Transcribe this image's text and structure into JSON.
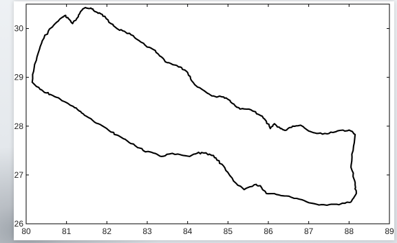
{
  "chart_data": {
    "type": "map",
    "xlim": [
      80,
      89
    ],
    "ylim": [
      26,
      30.5
    ],
    "x_ticks": [
      80,
      81,
      82,
      83,
      84,
      85,
      86,
      87,
      88,
      89
    ],
    "y_ticks": [
      26,
      27,
      28,
      29,
      30
    ],
    "x_tick_labels": [
      "80",
      "81",
      "82",
      "83",
      "84",
      "85",
      "86",
      "87",
      "88",
      "89"
    ],
    "y_tick_labels": [
      "26",
      "27",
      "28",
      "29",
      "30"
    ],
    "outline_color": "#000000",
    "grid": false,
    "boundary": [
      [
        80.15,
        28.9
      ],
      [
        80.2,
        29.2
      ],
      [
        80.3,
        29.5
      ],
      [
        80.4,
        29.75
      ],
      [
        80.55,
        29.95
      ],
      [
        80.72,
        30.1
      ],
      [
        80.88,
        30.22
      ],
      [
        80.98,
        30.27
      ],
      [
        81.05,
        30.2
      ],
      [
        81.15,
        30.1
      ],
      [
        81.25,
        30.2
      ],
      [
        81.35,
        30.35
      ],
      [
        81.47,
        30.43
      ],
      [
        81.6,
        30.42
      ],
      [
        81.7,
        30.35
      ],
      [
        81.82,
        30.32
      ],
      [
        81.95,
        30.25
      ],
      [
        82.1,
        30.1
      ],
      [
        82.25,
        30.0
      ],
      [
        82.4,
        29.95
      ],
      [
        82.6,
        29.87
      ],
      [
        82.8,
        29.75
      ],
      [
        83.0,
        29.62
      ],
      [
        83.2,
        29.55
      ],
      [
        83.35,
        29.42
      ],
      [
        83.5,
        29.3
      ],
      [
        83.7,
        29.25
      ],
      [
        83.85,
        29.2
      ],
      [
        84.0,
        29.1
      ],
      [
        84.1,
        28.93
      ],
      [
        84.25,
        28.8
      ],
      [
        84.45,
        28.7
      ],
      [
        84.6,
        28.62
      ],
      [
        84.85,
        28.6
      ],
      [
        85.0,
        28.55
      ],
      [
        85.15,
        28.45
      ],
      [
        85.3,
        28.35
      ],
      [
        85.5,
        28.35
      ],
      [
        85.65,
        28.3
      ],
      [
        85.8,
        28.22
      ],
      [
        85.95,
        28.1
      ],
      [
        86.05,
        27.95
      ],
      [
        86.15,
        28.05
      ],
      [
        86.3,
        27.95
      ],
      [
        86.45,
        27.92
      ],
      [
        86.6,
        28.0
      ],
      [
        86.8,
        28.02
      ],
      [
        87.0,
        27.9
      ],
      [
        87.2,
        27.85
      ],
      [
        87.4,
        27.85
      ],
      [
        87.6,
        27.87
      ],
      [
        87.85,
        27.92
      ],
      [
        88.05,
        27.9
      ],
      [
        88.15,
        27.83
      ],
      [
        88.1,
        27.5
      ],
      [
        88.05,
        27.2
      ],
      [
        88.1,
        27.0
      ],
      [
        88.15,
        26.8
      ],
      [
        88.18,
        26.62
      ],
      [
        88.05,
        26.45
      ],
      [
        87.9,
        26.42
      ],
      [
        87.7,
        26.4
      ],
      [
        87.45,
        26.38
      ],
      [
        87.2,
        26.4
      ],
      [
        86.95,
        26.45
      ],
      [
        86.7,
        26.52
      ],
      [
        86.45,
        26.57
      ],
      [
        86.2,
        26.6
      ],
      [
        85.95,
        26.62
      ],
      [
        85.8,
        26.78
      ],
      [
        85.65,
        26.8
      ],
      [
        85.4,
        26.7
      ],
      [
        85.2,
        26.83
      ],
      [
        85.0,
        27.05
      ],
      [
        84.85,
        27.22
      ],
      [
        84.7,
        27.35
      ],
      [
        84.6,
        27.4
      ],
      [
        84.4,
        27.45
      ],
      [
        84.25,
        27.45
      ],
      [
        84.05,
        27.38
      ],
      [
        83.8,
        27.42
      ],
      [
        83.55,
        27.43
      ],
      [
        83.35,
        27.38
      ],
      [
        83.15,
        27.45
      ],
      [
        82.9,
        27.5
      ],
      [
        82.7,
        27.6
      ],
      [
        82.5,
        27.7
      ],
      [
        82.3,
        27.8
      ],
      [
        82.1,
        27.88
      ],
      [
        81.9,
        28.0
      ],
      [
        81.7,
        28.08
      ],
      [
        81.5,
        28.2
      ],
      [
        81.35,
        28.3
      ],
      [
        81.2,
        28.38
      ],
      [
        81.0,
        28.48
      ],
      [
        80.8,
        28.58
      ],
      [
        80.6,
        28.65
      ],
      [
        80.5,
        28.68
      ],
      [
        80.35,
        28.75
      ],
      [
        80.15,
        28.9
      ]
    ]
  }
}
